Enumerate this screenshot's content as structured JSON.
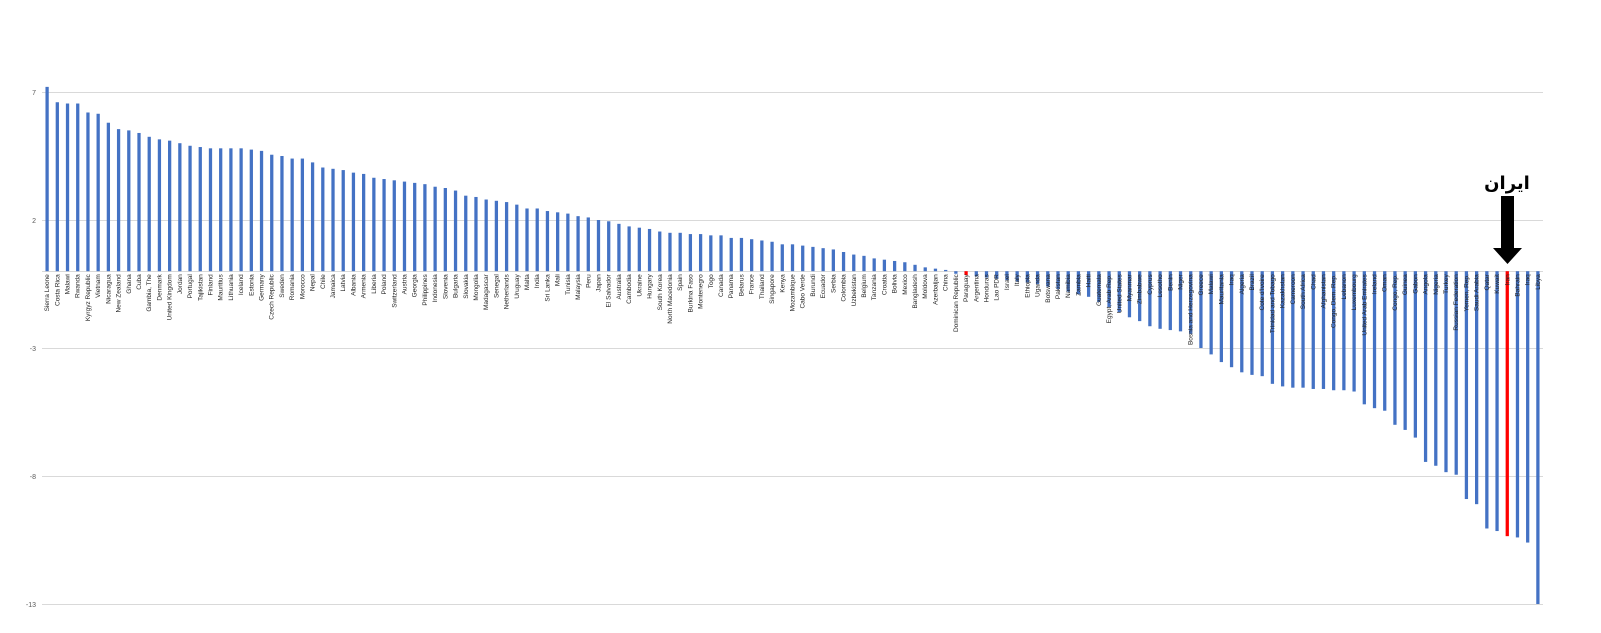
{
  "chart_data": {
    "type": "bar",
    "title": "",
    "xlabel": "",
    "ylabel": "",
    "ylim": [
      -13,
      7
    ],
    "yticks": [
      7,
      2,
      -3,
      -8,
      -13
    ],
    "grid": true,
    "bar_color": "#4472c4",
    "highlight_color": "#ff0000",
    "highlight_categories": [
      "Paraguay",
      "Iran"
    ],
    "annotation": {
      "text": "ایران",
      "target": "Iran",
      "arrow_color": "#000000"
    },
    "categories": [
      "Sierra Leone",
      "Costa Rica",
      "Malawi",
      "Rwanda",
      "Kyrgyz Republic",
      "Vietnam",
      "Nicaragua",
      "New Zealand",
      "Ghana",
      "Cuba",
      "Gambia, The",
      "Denmark",
      "United Kingdom",
      "Jordan",
      "Portugal",
      "Tajikistan",
      "Finland",
      "Mauritius",
      "Lithuania",
      "Iceland",
      "Estonia",
      "Germany",
      "Czech Republic",
      "Sweden",
      "Romania",
      "Morocco",
      "Nepal",
      "Chile",
      "Jamaica",
      "Latvia",
      "Albania",
      "Armenia",
      "Liberia",
      "Poland",
      "Switzerland",
      "Austria",
      "Georgia",
      "Philippines",
      "Indonesia",
      "Slovenia",
      "Bulgaria",
      "Slovakia",
      "Mongolia",
      "Madagascar",
      "Senegal",
      "Netherlands",
      "Uruguay",
      "Malta",
      "India",
      "Sri Lanka",
      "Mali",
      "Tunisia",
      "Malaysia",
      "Peru",
      "Japan",
      "El Salvador",
      "Australia",
      "Cambodia",
      "Ukraine",
      "Hungary",
      "South Korea",
      "North Macedonia",
      "Spain",
      "Burkina Faso",
      "Montenegro",
      "Togo",
      "Canada",
      "Panama",
      "Belarus",
      "France",
      "Thailand",
      "Singapore",
      "Kenya",
      "Mozambique",
      "Cabo Verde",
      "Burundi",
      "Ecuador",
      "Serbia",
      "Colombia",
      "Uzbekistan",
      "Belgium",
      "Tanzania",
      "Croatia",
      "Bolivia",
      "Mexico",
      "Bangladesh",
      "Moldova",
      "Azerbaijan",
      "China",
      "Dominican Republic",
      "Paraguay",
      "Argentina",
      "Honduras",
      "Lao PDR",
      "Israel",
      "Italy",
      "Ethiopia",
      "Uganda",
      "Botswana",
      "Pakistan",
      "Namibia",
      "Zambia",
      "Haiti",
      "Guatemala",
      "Egypt, Arab Rep.",
      "United States",
      "Myanmar",
      "Zimbabwe",
      "Cyprus",
      "Lesotho",
      "Benin",
      "Niger",
      "Bosnia and Herzegovina",
      "Greece",
      "Malawi",
      "Mauritania",
      "Iraq",
      "Algeria",
      "Brazil",
      "Cote d'Ivoire",
      "Trinidad and Tobago",
      "Kazakhstan",
      "Cameroon",
      "South Africa",
      "Chad",
      "Afghanistan",
      "Congo, Dem. Rep.",
      "Lebanon",
      "Luxembourg",
      "United Arab Emirates",
      "Ireland",
      "Oman",
      "Congo, Rep.",
      "Guinea",
      "Gabon",
      "Angola",
      "Nigeria",
      "Turkey",
      "Russian Federation",
      "Yemen, Rep.",
      "Saudi Arabia",
      "Qatar",
      "Kuwait",
      "Iran",
      "Bahrain",
      "Iraq",
      "Libya"
    ],
    "values": [
      7.2,
      6.6,
      6.55,
      6.55,
      6.2,
      6.15,
      5.8,
      5.55,
      5.5,
      5.4,
      5.25,
      5.15,
      5.1,
      5.0,
      4.9,
      4.85,
      4.8,
      4.8,
      4.8,
      4.8,
      4.75,
      4.7,
      4.55,
      4.5,
      4.4,
      4.4,
      4.25,
      4.05,
      4.0,
      3.95,
      3.85,
      3.8,
      3.65,
      3.6,
      3.55,
      3.5,
      3.45,
      3.4,
      3.3,
      3.25,
      3.15,
      2.95,
      2.9,
      2.8,
      2.75,
      2.7,
      2.6,
      2.45,
      2.45,
      2.35,
      2.3,
      2.25,
      2.15,
      2.1,
      2.0,
      1.95,
      1.85,
      1.75,
      1.7,
      1.65,
      1.55,
      1.5,
      1.5,
      1.45,
      1.45,
      1.4,
      1.4,
      1.3,
      1.3,
      1.25,
      1.2,
      1.15,
      1.05,
      1.05,
      1.0,
      0.95,
      0.9,
      0.85,
      0.75,
      0.65,
      0.6,
      0.5,
      0.45,
      0.4,
      0.35,
      0.25,
      0.15,
      0.1,
      0.05,
      -0.1,
      -0.15,
      -0.2,
      -0.25,
      -0.3,
      -0.35,
      -0.4,
      -0.45,
      -0.5,
      -0.6,
      -0.7,
      -0.8,
      -0.9,
      -1.0,
      -1.2,
      -1.4,
      -1.6,
      -1.8,
      -1.95,
      -2.15,
      -2.25,
      -2.3,
      -2.35,
      -2.45,
      -3.0,
      -3.25,
      -3.55,
      -3.75,
      -3.95,
      -4.05,
      -4.1,
      -4.4,
      -4.5,
      -4.55,
      -4.55,
      -4.6,
      -4.6,
      -4.65,
      -4.65,
      -4.7,
      -5.2,
      -5.35,
      -5.45,
      -6.0,
      -6.2,
      -6.5,
      -7.45,
      -7.6,
      -7.85,
      -7.95,
      -8.9,
      -9.1,
      -10.05,
      -10.15,
      -10.35,
      -10.4,
      -10.6,
      -13.0
    ]
  }
}
